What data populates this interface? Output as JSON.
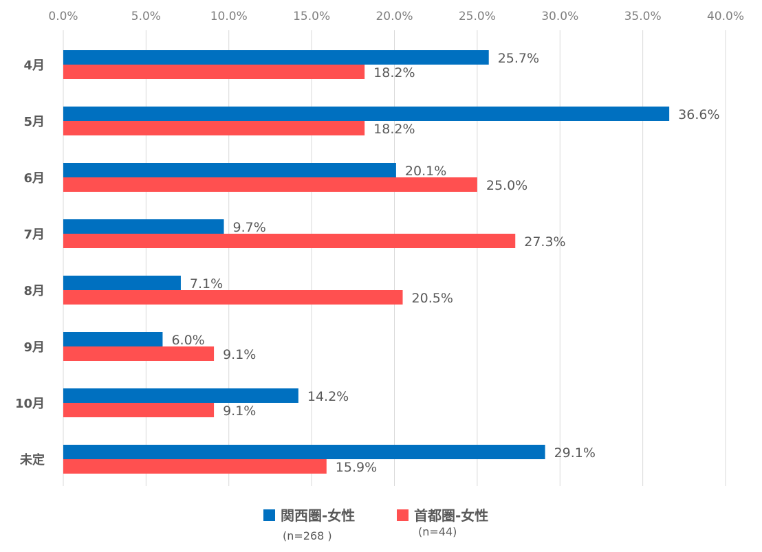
{
  "chart_data": {
    "type": "bar",
    "orientation": "horizontal",
    "categories": [
      "4月",
      "5月",
      "6月",
      "7月",
      "8月",
      "9月",
      "10月",
      "未定"
    ],
    "series": [
      {
        "name": "関西圏-女性",
        "n_label": "(n=268 )",
        "color": "#0070c0",
        "values": [
          25.7,
          36.6,
          20.1,
          9.7,
          7.1,
          6.0,
          14.2,
          29.1
        ],
        "labels": [
          "25.7%",
          "36.6%",
          "20.1%",
          "9.7%",
          "7.1%",
          "6.0%",
          "14.2%",
          "29.1%"
        ]
      },
      {
        "name": "首都圏-女性",
        "n_label": "(n=44)",
        "color": "#ff5050",
        "values": [
          18.2,
          18.2,
          25.0,
          27.3,
          20.5,
          9.1,
          9.1,
          15.9
        ],
        "labels": [
          "18.2%",
          "18.2%",
          "25.0%",
          "27.3%",
          "20.5%",
          "9.1%",
          "9.1%",
          "15.9%"
        ]
      }
    ],
    "xlim": [
      0,
      40
    ],
    "xticks": [
      "0.0%",
      "5.0%",
      "10.0%",
      "15.0%",
      "20.0%",
      "25.0%",
      "30.0%",
      "35.0%",
      "40.0%"
    ],
    "grid": true,
    "x_axis_position": "top",
    "legend_position": "bottom",
    "title": "",
    "xlabel": "",
    "ylabel": ""
  }
}
